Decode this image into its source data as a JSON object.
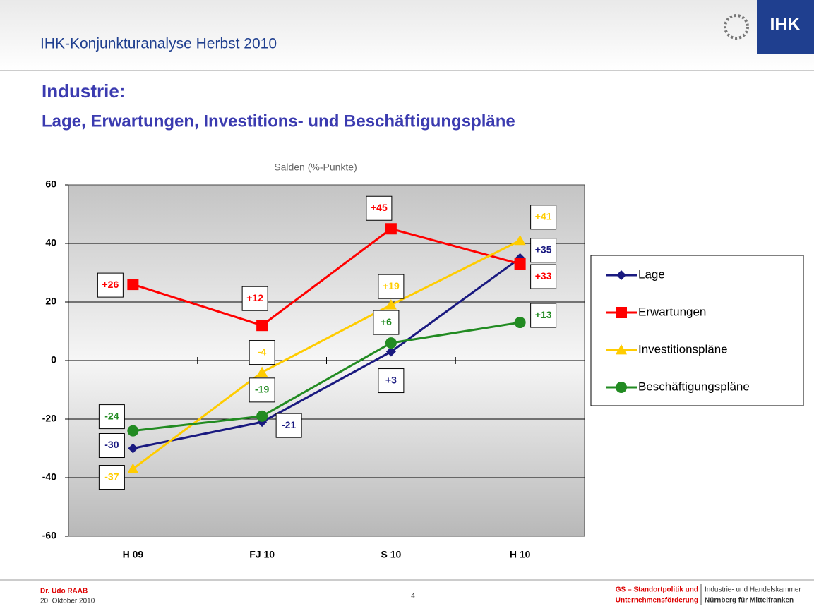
{
  "header": {
    "title": "IHK-Konjunkturanalyse Herbst 2010",
    "logo": "IHK"
  },
  "slide": {
    "title": "Industrie:",
    "subtitle": "Lage, Erwartungen, Investitions- und Beschäftigungspläne"
  },
  "chart_data": {
    "type": "line",
    "ylabel": "Salden (%-Punkte)",
    "categories": [
      "H 09",
      "FJ 10",
      "S 10",
      "H 10"
    ],
    "ylim": [
      -60,
      60
    ],
    "yticks": [
      -60,
      -40,
      -20,
      0,
      20,
      40,
      60
    ],
    "grid": true,
    "series": [
      {
        "name": "Lage",
        "color": "#1a1a80",
        "marker": "diamond",
        "values": [
          -30,
          -21,
          3,
          35
        ],
        "value_labels": [
          "-30",
          "-21",
          "+3",
          "+35"
        ]
      },
      {
        "name": "Erwartungen",
        "color": "#ff0000",
        "marker": "square",
        "values": [
          26,
          12,
          45,
          33
        ],
        "value_labels": [
          "+26",
          "+12",
          "+45",
          "+33"
        ]
      },
      {
        "name": "Investitionspläne",
        "color": "#ffcc00",
        "marker": "triangle",
        "values": [
          -37,
          -4,
          19,
          41
        ],
        "value_labels": [
          "-37",
          "-4",
          "+19",
          "+41"
        ]
      },
      {
        "name": "Beschäftigungspläne",
        "color": "#228b22",
        "marker": "circle",
        "values": [
          -24,
          -19,
          6,
          13
        ],
        "value_labels": [
          "-24",
          "-19",
          "+6",
          "+13"
        ]
      }
    ]
  },
  "footer": {
    "author": "Dr. Udo RAAB",
    "date": "20. Oktober 2010",
    "page": "4",
    "dept1": "GS – Standortpolitik und",
    "dept2": "Unternehmensförderung",
    "org1": "Industrie- und Handelskammer",
    "org2": "Nürnberg für Mittelfranken"
  }
}
